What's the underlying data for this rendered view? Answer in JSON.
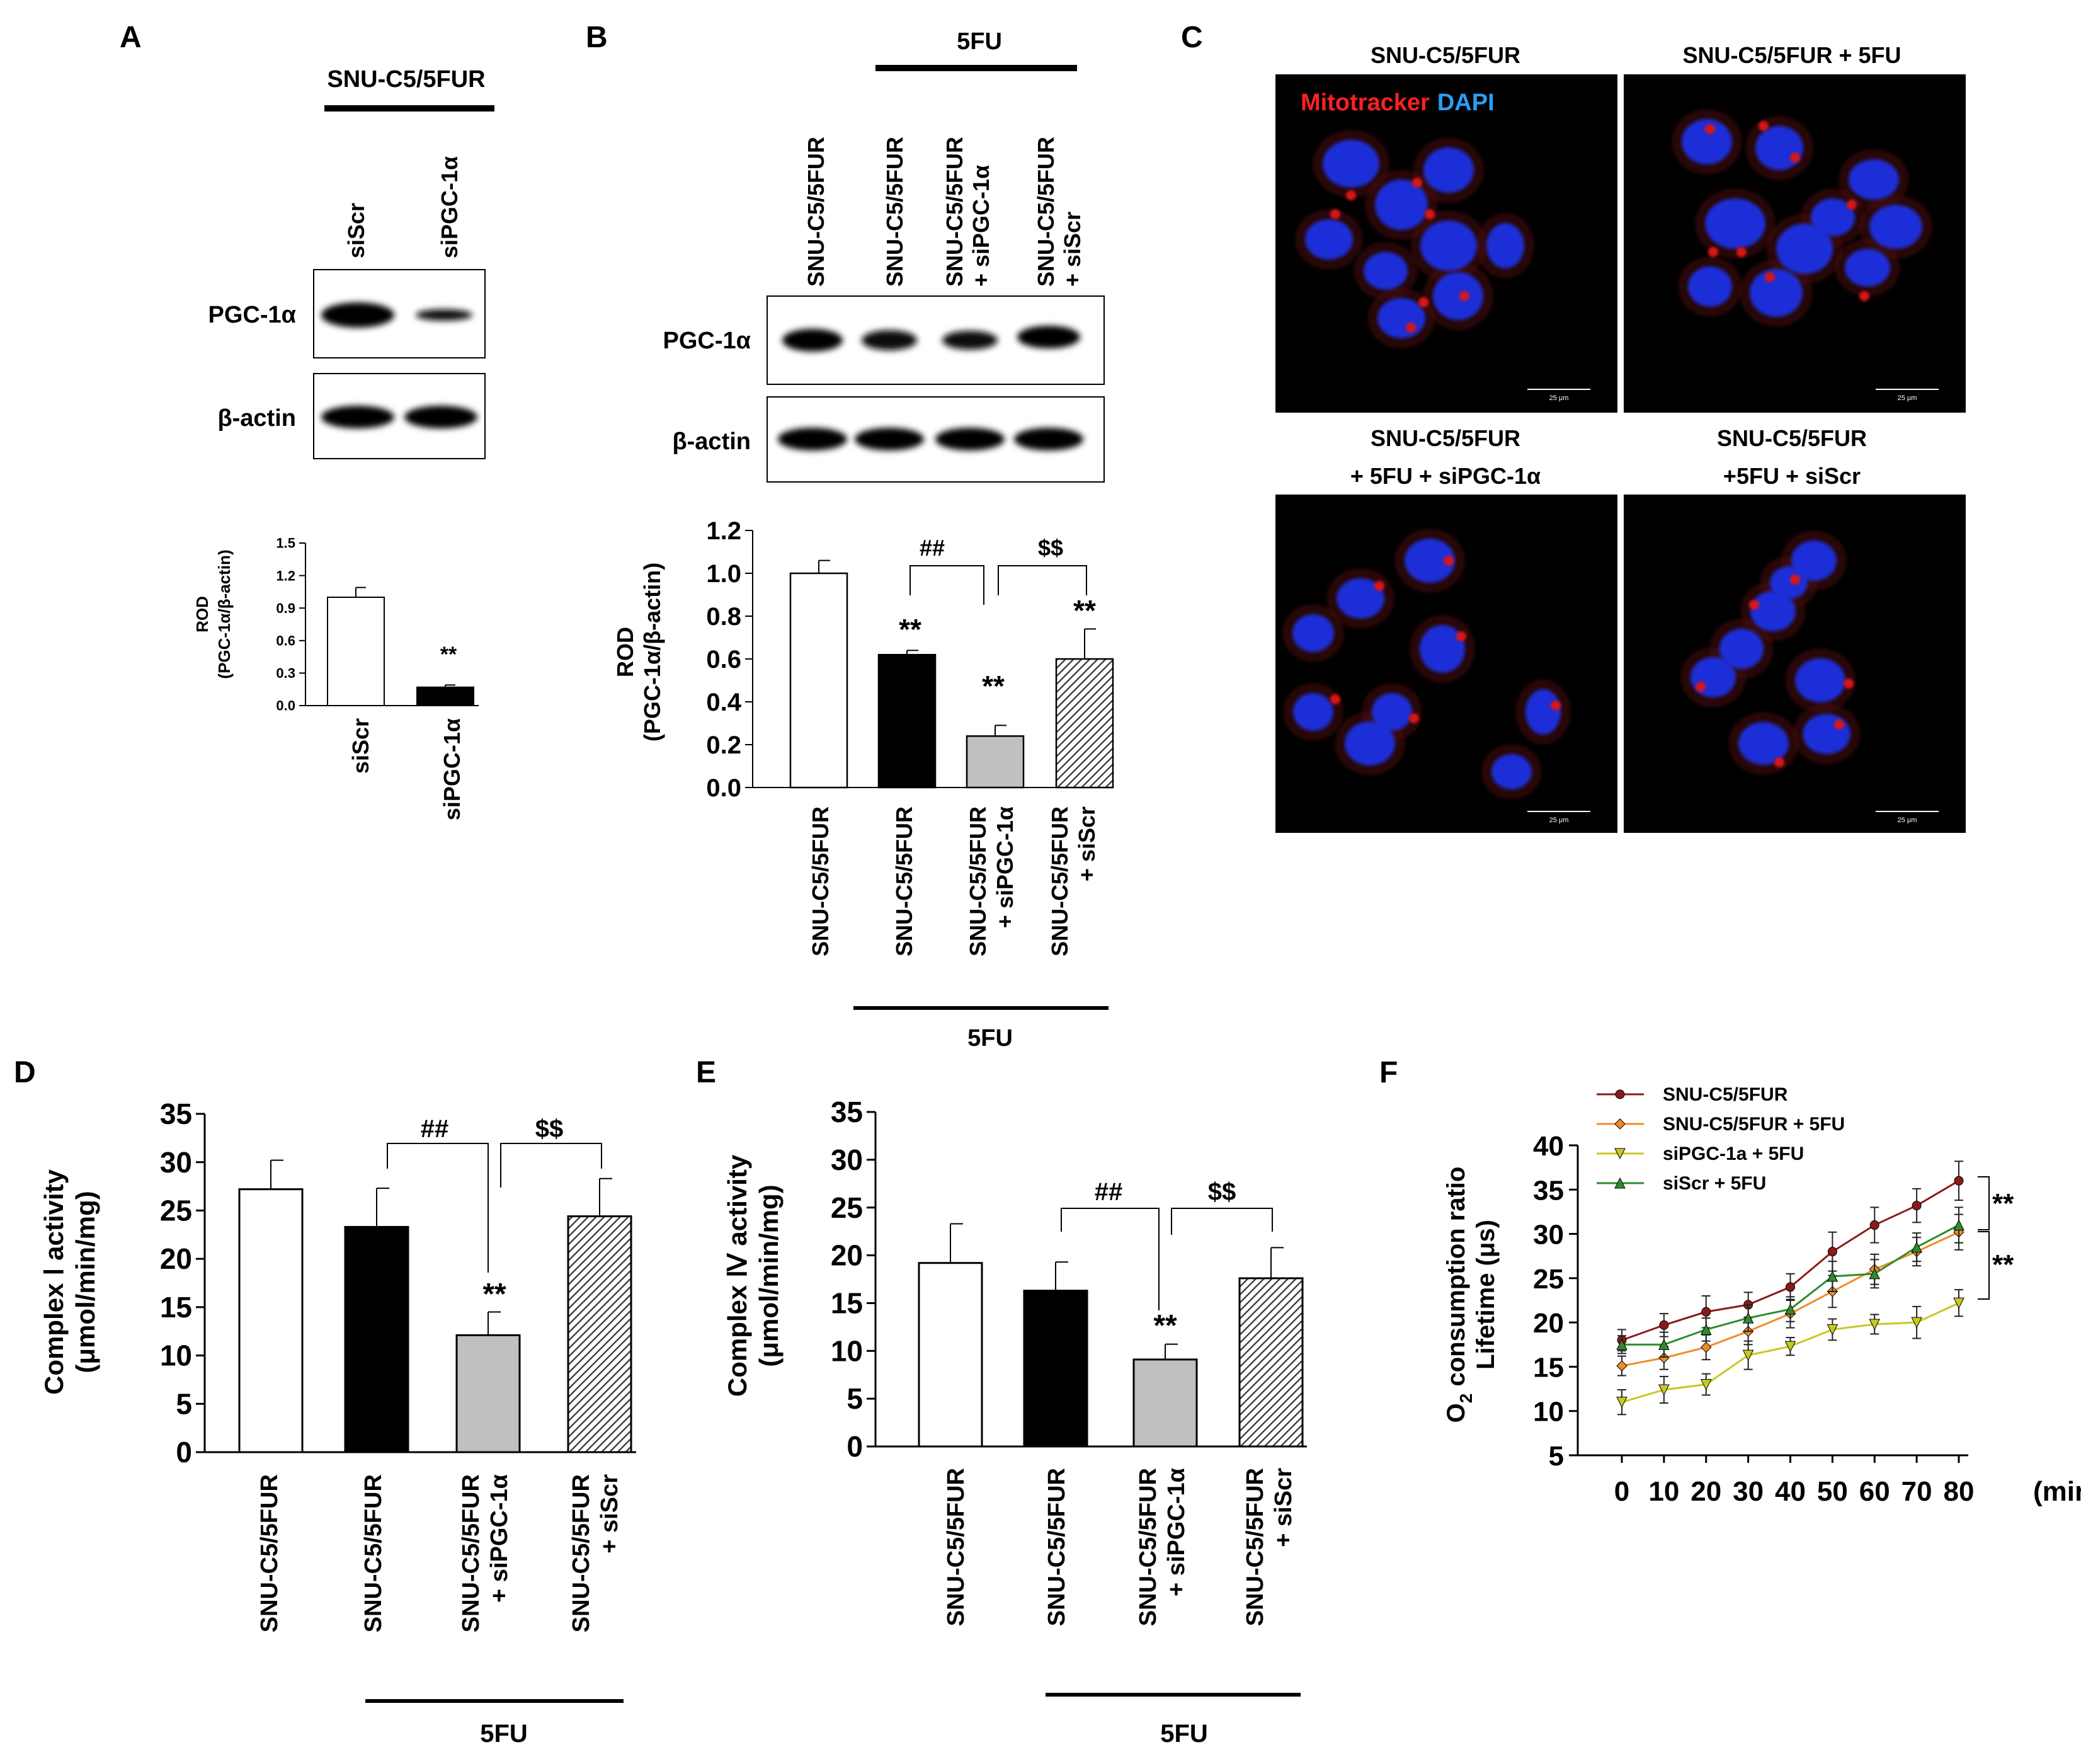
{
  "panel_letters": [
    "A",
    "B",
    "C",
    "D",
    "E",
    "F"
  ],
  "colors": {
    "black": "#000000",
    "gray_bar": "#c0c0c0",
    "hatch": "#333333",
    "micrograph_bg": "#000000",
    "nucleus": "#1f2fd8",
    "mito": "#d81818",
    "mitotracker_label": "#ff2020",
    "dapi_label": "#2a9df4"
  },
  "panelA": {
    "header": "SNU-C5/5FUR",
    "lanes": [
      "siScr",
      "siPGC-1α"
    ],
    "blots": [
      "PGC-1α",
      "β-actin"
    ],
    "ylabel": [
      "ROD",
      "(PGC-1α/β-actin)"
    ],
    "xlabels": [
      "siScr",
      "siPGC-1α"
    ],
    "sig": [
      "**"
    ]
  },
  "panelB": {
    "header": "5FU",
    "lanes": [
      "SNU-C5/5FUR",
      "SNU-C5/5FUR",
      [
        "SNU-C5/5FUR",
        "+ siPGC-1α"
      ],
      [
        "SNU-C5/5FUR",
        "+ siScr"
      ]
    ],
    "blots": [
      "PGC-1α",
      "β-actin"
    ],
    "ylabel": [
      "ROD",
      "(PGC-1α/β-actin)"
    ],
    "xlabels": [
      "SNU-C5/5FUR",
      "SNU-C5/5FUR",
      [
        "SNU-C5/5FUR",
        "+ siPGC-1α"
      ],
      [
        "SNU-C5/5FUR",
        "+ siScr"
      ]
    ],
    "xgroup": "5FU",
    "brackets": [
      "##",
      "$$"
    ],
    "sig": [
      "**",
      "**",
      "**"
    ]
  },
  "panelC": {
    "legend": {
      "mitotracker": "Mitotracker",
      "dapi": "DAPI"
    },
    "titles": [
      [
        "SNU-C5/5FUR"
      ],
      [
        "SNU-C5/5FUR  + 5FU"
      ],
      [
        "SNU-C5/5FUR",
        "+ 5FU  + siPGC-1α"
      ],
      [
        "SNU-C5/5FUR",
        "+5FU  + siScr"
      ]
    ],
    "scalebar": "25 μm"
  },
  "panelD": {
    "ylabel": [
      "Complex Ⅰ activity",
      "(μmol/min/mg)"
    ],
    "xlabels": [
      "SNU-C5/5FUR",
      "SNU-C5/5FUR",
      [
        "SNU-C5/5FUR",
        "+ siPGC-1α"
      ],
      [
        "SNU-C5/5FUR",
        "+ siScr"
      ]
    ],
    "xgroup": "5FU",
    "brackets": [
      "##",
      "$$"
    ],
    "sig": [
      "**"
    ]
  },
  "panelE": {
    "ylabel": [
      "Complex Ⅳ activity",
      "(μmol/min/mg)"
    ],
    "xlabels": [
      "SNU-C5/5FUR",
      "SNU-C5/5FUR",
      [
        "SNU-C5/5FUR",
        "+ siPGC-1α"
      ],
      [
        "SNU-C5/5FUR",
        "+ siScr"
      ]
    ],
    "xgroup": "5FU",
    "brackets": [
      "##",
      "$$"
    ],
    "sig": [
      "**"
    ]
  },
  "panelF": {
    "ylabel_parts": [
      "O",
      "2",
      " consumption ratio"
    ],
    "ylabel2": "Lifetime (μs)",
    "xunit": "(min)",
    "sig": [
      "**",
      "**"
    ]
  },
  "chart_data": [
    {
      "id": "A",
      "type": "bar",
      "categories": [
        "siScr",
        "siPGC-1α"
      ],
      "values": [
        1.0,
        0.17
      ],
      "errors": [
        0.09,
        0.02
      ],
      "ylabel": "ROD (PGC-1α/β-actin)",
      "ylim": [
        0,
        1.5
      ],
      "yticks": [
        "0.0",
        "0.3",
        "0.6",
        "0.9",
        "1.2",
        "1.5"
      ],
      "fills": [
        "#ffffff",
        "#000000"
      ]
    },
    {
      "id": "B",
      "type": "bar",
      "categories": [
        "SNU-C5/5FUR",
        "SNU-C5/5FUR (5FU)",
        "SNU-C5/5FUR + siPGC-1α (5FU)",
        "SNU-C5/5FUR + siScr (5FU)"
      ],
      "values": [
        1.0,
        0.62,
        0.24,
        0.6
      ],
      "errors": [
        0.06,
        0.02,
        0.05,
        0.14
      ],
      "ylabel": "ROD (PGC-1α/β-actin)",
      "ylim": [
        0,
        1.2
      ],
      "yticks": [
        "0.0",
        "0.2",
        "0.4",
        "0.6",
        "0.8",
        "1.0",
        "1.2"
      ],
      "fills": [
        "#ffffff",
        "#000000",
        "#c0c0c0",
        "hatch"
      ]
    },
    {
      "id": "D",
      "type": "bar",
      "categories": [
        "SNU-C5/5FUR",
        "SNU-C5/5FUR (5FU)",
        "SNU-C5/5FUR + siPGC-1α (5FU)",
        "SNU-C5/5FUR + siScr (5FU)"
      ],
      "values": [
        27.2,
        23.3,
        12.1,
        24.4
      ],
      "errors": [
        3.0,
        4.0,
        2.4,
        3.9
      ],
      "ylabel": "Complex Ⅰ activity (μmol/min/mg)",
      "ylim": [
        0,
        35
      ],
      "yticks": [
        "0",
        "5",
        "10",
        "15",
        "20",
        "25",
        "30",
        "35"
      ],
      "fills": [
        "#ffffff",
        "#000000",
        "#c0c0c0",
        "hatch"
      ]
    },
    {
      "id": "E",
      "type": "bar",
      "categories": [
        "SNU-C5/5FUR",
        "SNU-C5/5FUR (5FU)",
        "SNU-C5/5FUR + siPGC-1α (5FU)",
        "SNU-C5/5FUR + siScr (5FU)"
      ],
      "values": [
        19.2,
        16.3,
        9.1,
        17.6
      ],
      "errors": [
        4.1,
        3.0,
        1.6,
        3.2
      ],
      "ylabel": "Complex Ⅳ activity (μmol/min/mg)",
      "ylim": [
        0,
        35
      ],
      "yticks": [
        "0",
        "5",
        "10",
        "15",
        "20",
        "25",
        "30",
        "35"
      ],
      "fills": [
        "#ffffff",
        "#000000",
        "#c0c0c0",
        "hatch"
      ]
    },
    {
      "id": "F",
      "type": "line",
      "x": [
        0,
        10,
        20,
        30,
        40,
        50,
        60,
        70,
        80
      ],
      "xticks": [
        "0",
        "10",
        "20",
        "30",
        "40",
        "50",
        "60",
        "70",
        "80"
      ],
      "ylim": [
        5,
        40
      ],
      "yticks": [
        "5",
        "10",
        "15",
        "20",
        "25",
        "30",
        "35",
        "40"
      ],
      "ylabel": "O2 consumption ratio Lifetime (μs)",
      "xlabel": "(min)",
      "legend_position": "top-left",
      "series": [
        {
          "name": "SNU-C5/5FUR",
          "color": "#8b1a1a",
          "marker": "circle",
          "values": [
            18,
            19.7,
            21.2,
            22,
            24,
            28,
            31,
            33.2,
            36
          ],
          "errors": [
            1.2,
            1.3,
            1.8,
            1.4,
            1.5,
            2.2,
            2.0,
            1.9,
            2.2
          ]
        },
        {
          "name": "SNU-C5/5FUR + 5FU",
          "color": "#f08c28",
          "marker": "diamond",
          "values": [
            15.1,
            16,
            17.2,
            19,
            21,
            23.5,
            26,
            28,
            30.2
          ],
          "errors": [
            1.1,
            1.3,
            1.4,
            1.5,
            1.6,
            1.8,
            1.7,
            1.6,
            2.0
          ]
        },
        {
          "name": "siPGC-1a + 5FU",
          "color": "#c8c820",
          "marker": "triangle-down",
          "values": [
            11,
            12.4,
            13,
            16.3,
            17.3,
            19.2,
            19.8,
            20,
            22.2
          ],
          "errors": [
            1.4,
            1.5,
            1.2,
            1.6,
            1.0,
            1.2,
            1.1,
            1.8,
            1.5
          ]
        },
        {
          "name": "siScr + 5FU",
          "color": "#2e8b2e",
          "marker": "triangle-up",
          "values": [
            17.5,
            17.5,
            19.2,
            20.5,
            21.5,
            25.2,
            25.5,
            28.5,
            31
          ],
          "errors": [
            1.0,
            1.4,
            1.3,
            1.5,
            1.4,
            1.7,
            1.6,
            1.6,
            2.0
          ]
        }
      ]
    }
  ]
}
